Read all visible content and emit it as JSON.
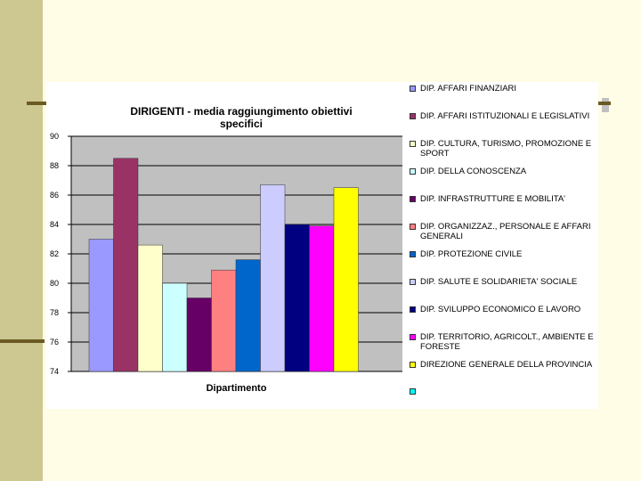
{
  "chart_data": {
    "type": "bar",
    "title": "DIRIGENTI - media raggiungimento obiettivi specifici",
    "xlabel": "Dipartimento",
    "ylabel": "",
    "ylim": [
      74,
      90
    ],
    "yticks": [
      "90",
      "88",
      "86",
      "84",
      "82",
      "80",
      "78",
      "76",
      "74"
    ],
    "grid": "horizontal",
    "legend_position": "right",
    "plot_background": "#c0c0c0",
    "series": [
      {
        "name": "DIP. AFFARI FINANZIARI",
        "value": 83.0,
        "color": "#9999ff"
      },
      {
        "name": "DIP. AFFARI ISTITUZIONALI E LEGISLATIVI",
        "value": 88.5,
        "color": "#993366"
      },
      {
        "name": "DIP. CULTURA, TURISMO, PROMOZIONE E SPORT",
        "value": 82.6,
        "color": "#ffffcc"
      },
      {
        "name": "DIP. DELLA CONOSCENZA",
        "value": 80.0,
        "color": "#ccffff"
      },
      {
        "name": "DIP. INFRASTRUTTURE E MOBILITA'",
        "value": 79.0,
        "color": "#660066"
      },
      {
        "name": "DIP. ORGANIZZAZ., PERSONALE E AFFARI GENERALI",
        "value": 80.9,
        "color": "#ff8080"
      },
      {
        "name": "DIP. PROTEZIONE CIVILE",
        "value": 81.6,
        "color": "#0066cc"
      },
      {
        "name": "DIP. SALUTE E SOLIDARIETA' SOCIALE",
        "value": 86.7,
        "color": "#ccccff"
      },
      {
        "name": "DIP. SVILUPPO ECONOMICO E LAVORO",
        "value": 84.0,
        "color": "#000080"
      },
      {
        "name": "DIP. TERRITORIO, AGRICOLT., AMBIENTE E FORESTE",
        "value": 83.9,
        "color": "#ff00ff"
      },
      {
        "name": "DIREZIONE GENERALE DELLA PROVINCIA",
        "value": 86.5,
        "color": "#ffff00"
      },
      {
        "name": "",
        "value": null,
        "color": "#00ffff"
      }
    ]
  }
}
